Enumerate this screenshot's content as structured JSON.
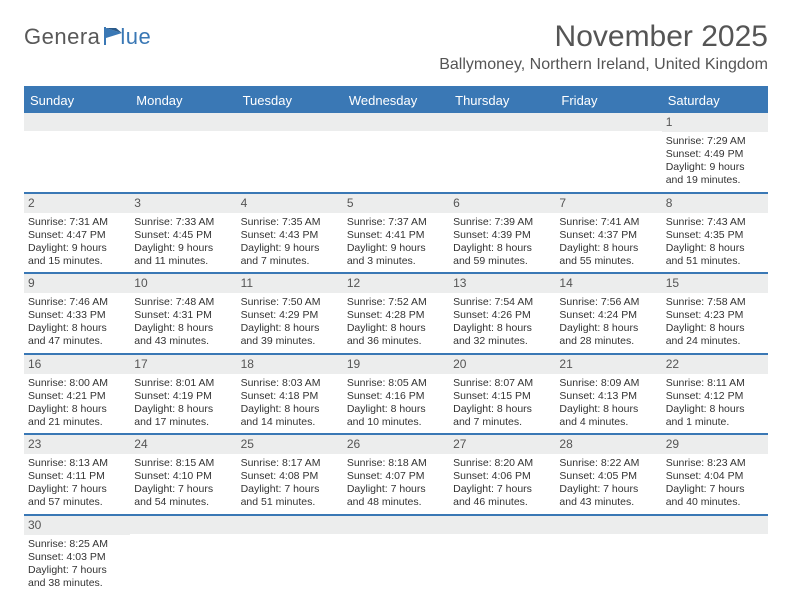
{
  "logo": {
    "part1": "Genera",
    "part2": "lue"
  },
  "title": "November 2025",
  "location": "Ballymoney, Northern Ireland, United Kingdom",
  "colors": {
    "header_bg": "#3a78b5",
    "daynum_bg": "#eceded",
    "text": "#333333",
    "title": "#555555"
  },
  "weekdays": [
    "Sunday",
    "Monday",
    "Tuesday",
    "Wednesday",
    "Thursday",
    "Friday",
    "Saturday"
  ],
  "weeks": [
    [
      {
        "n": ""
      },
      {
        "n": ""
      },
      {
        "n": ""
      },
      {
        "n": ""
      },
      {
        "n": ""
      },
      {
        "n": ""
      },
      {
        "n": "1",
        "sr": "Sunrise: 7:29 AM",
        "ss": "Sunset: 4:49 PM",
        "d1": "Daylight: 9 hours",
        "d2": "and 19 minutes."
      }
    ],
    [
      {
        "n": "2",
        "sr": "Sunrise: 7:31 AM",
        "ss": "Sunset: 4:47 PM",
        "d1": "Daylight: 9 hours",
        "d2": "and 15 minutes."
      },
      {
        "n": "3",
        "sr": "Sunrise: 7:33 AM",
        "ss": "Sunset: 4:45 PM",
        "d1": "Daylight: 9 hours",
        "d2": "and 11 minutes."
      },
      {
        "n": "4",
        "sr": "Sunrise: 7:35 AM",
        "ss": "Sunset: 4:43 PM",
        "d1": "Daylight: 9 hours",
        "d2": "and 7 minutes."
      },
      {
        "n": "5",
        "sr": "Sunrise: 7:37 AM",
        "ss": "Sunset: 4:41 PM",
        "d1": "Daylight: 9 hours",
        "d2": "and 3 minutes."
      },
      {
        "n": "6",
        "sr": "Sunrise: 7:39 AM",
        "ss": "Sunset: 4:39 PM",
        "d1": "Daylight: 8 hours",
        "d2": "and 59 minutes."
      },
      {
        "n": "7",
        "sr": "Sunrise: 7:41 AM",
        "ss": "Sunset: 4:37 PM",
        "d1": "Daylight: 8 hours",
        "d2": "and 55 minutes."
      },
      {
        "n": "8",
        "sr": "Sunrise: 7:43 AM",
        "ss": "Sunset: 4:35 PM",
        "d1": "Daylight: 8 hours",
        "d2": "and 51 minutes."
      }
    ],
    [
      {
        "n": "9",
        "sr": "Sunrise: 7:46 AM",
        "ss": "Sunset: 4:33 PM",
        "d1": "Daylight: 8 hours",
        "d2": "and 47 minutes."
      },
      {
        "n": "10",
        "sr": "Sunrise: 7:48 AM",
        "ss": "Sunset: 4:31 PM",
        "d1": "Daylight: 8 hours",
        "d2": "and 43 minutes."
      },
      {
        "n": "11",
        "sr": "Sunrise: 7:50 AM",
        "ss": "Sunset: 4:29 PM",
        "d1": "Daylight: 8 hours",
        "d2": "and 39 minutes."
      },
      {
        "n": "12",
        "sr": "Sunrise: 7:52 AM",
        "ss": "Sunset: 4:28 PM",
        "d1": "Daylight: 8 hours",
        "d2": "and 36 minutes."
      },
      {
        "n": "13",
        "sr": "Sunrise: 7:54 AM",
        "ss": "Sunset: 4:26 PM",
        "d1": "Daylight: 8 hours",
        "d2": "and 32 minutes."
      },
      {
        "n": "14",
        "sr": "Sunrise: 7:56 AM",
        "ss": "Sunset: 4:24 PM",
        "d1": "Daylight: 8 hours",
        "d2": "and 28 minutes."
      },
      {
        "n": "15",
        "sr": "Sunrise: 7:58 AM",
        "ss": "Sunset: 4:23 PM",
        "d1": "Daylight: 8 hours",
        "d2": "and 24 minutes."
      }
    ],
    [
      {
        "n": "16",
        "sr": "Sunrise: 8:00 AM",
        "ss": "Sunset: 4:21 PM",
        "d1": "Daylight: 8 hours",
        "d2": "and 21 minutes."
      },
      {
        "n": "17",
        "sr": "Sunrise: 8:01 AM",
        "ss": "Sunset: 4:19 PM",
        "d1": "Daylight: 8 hours",
        "d2": "and 17 minutes."
      },
      {
        "n": "18",
        "sr": "Sunrise: 8:03 AM",
        "ss": "Sunset: 4:18 PM",
        "d1": "Daylight: 8 hours",
        "d2": "and 14 minutes."
      },
      {
        "n": "19",
        "sr": "Sunrise: 8:05 AM",
        "ss": "Sunset: 4:16 PM",
        "d1": "Daylight: 8 hours",
        "d2": "and 10 minutes."
      },
      {
        "n": "20",
        "sr": "Sunrise: 8:07 AM",
        "ss": "Sunset: 4:15 PM",
        "d1": "Daylight: 8 hours",
        "d2": "and 7 minutes."
      },
      {
        "n": "21",
        "sr": "Sunrise: 8:09 AM",
        "ss": "Sunset: 4:13 PM",
        "d1": "Daylight: 8 hours",
        "d2": "and 4 minutes."
      },
      {
        "n": "22",
        "sr": "Sunrise: 8:11 AM",
        "ss": "Sunset: 4:12 PM",
        "d1": "Daylight: 8 hours",
        "d2": "and 1 minute."
      }
    ],
    [
      {
        "n": "23",
        "sr": "Sunrise: 8:13 AM",
        "ss": "Sunset: 4:11 PM",
        "d1": "Daylight: 7 hours",
        "d2": "and 57 minutes."
      },
      {
        "n": "24",
        "sr": "Sunrise: 8:15 AM",
        "ss": "Sunset: 4:10 PM",
        "d1": "Daylight: 7 hours",
        "d2": "and 54 minutes."
      },
      {
        "n": "25",
        "sr": "Sunrise: 8:17 AM",
        "ss": "Sunset: 4:08 PM",
        "d1": "Daylight: 7 hours",
        "d2": "and 51 minutes."
      },
      {
        "n": "26",
        "sr": "Sunrise: 8:18 AM",
        "ss": "Sunset: 4:07 PM",
        "d1": "Daylight: 7 hours",
        "d2": "and 48 minutes."
      },
      {
        "n": "27",
        "sr": "Sunrise: 8:20 AM",
        "ss": "Sunset: 4:06 PM",
        "d1": "Daylight: 7 hours",
        "d2": "and 46 minutes."
      },
      {
        "n": "28",
        "sr": "Sunrise: 8:22 AM",
        "ss": "Sunset: 4:05 PM",
        "d1": "Daylight: 7 hours",
        "d2": "and 43 minutes."
      },
      {
        "n": "29",
        "sr": "Sunrise: 8:23 AM",
        "ss": "Sunset: 4:04 PM",
        "d1": "Daylight: 7 hours",
        "d2": "and 40 minutes."
      }
    ],
    [
      {
        "n": "30",
        "sr": "Sunrise: 8:25 AM",
        "ss": "Sunset: 4:03 PM",
        "d1": "Daylight: 7 hours",
        "d2": "and 38 minutes."
      },
      {
        "n": ""
      },
      {
        "n": ""
      },
      {
        "n": ""
      },
      {
        "n": ""
      },
      {
        "n": ""
      },
      {
        "n": ""
      }
    ]
  ]
}
